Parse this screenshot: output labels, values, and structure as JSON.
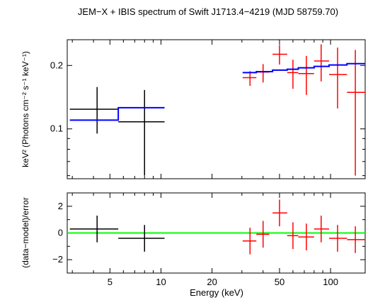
{
  "chart_data": {
    "type": "scatter",
    "title": "JEM−X + IBIS spectrum of Swift J1713.4−4219 (MJD 58759.70)",
    "xlabel": "Energy (keV)",
    "x_scale": "log",
    "xlim": [
      2.8,
      160
    ],
    "x_ticks": [
      {
        "v": 5,
        "label": "5"
      },
      {
        "v": 10,
        "label": "10"
      },
      {
        "v": 20,
        "label": "20"
      },
      {
        "v": 50,
        "label": "50"
      },
      {
        "v": 100,
        "label": "100"
      }
    ],
    "colors": {
      "jemx": "#000000",
      "ibis": "#ff0000",
      "model": "#0000ff",
      "zero_line": "#00ff00"
    },
    "panels": [
      {
        "name": "spectrum",
        "ylabel": "keV² (Photons cm⁻² s⁻¹ keV⁻¹)",
        "y_scale": "log",
        "ylim": [
          0.058,
          0.265
        ],
        "y_ticks": [
          {
            "v": 0.1,
            "label": "0.1"
          },
          {
            "v": 0.2,
            "label": "0.2"
          }
        ],
        "series": [
          {
            "key": "jemx",
            "points": [
              {
                "x": 4.2,
                "xlo": 2.9,
                "xhi": 5.6,
                "y": 0.124,
                "ylo": 0.095,
                "yhi": 0.158
              },
              {
                "x": 8.0,
                "xlo": 5.6,
                "xhi": 10.5,
                "y": 0.108,
                "ylo": 0.06,
                "yhi": 0.153
              }
            ]
          },
          {
            "key": "ibis",
            "points": [
              {
                "x": 33.5,
                "xlo": 30.3,
                "xhi": 36.5,
                "y": 0.175,
                "ylo": 0.16,
                "yhi": 0.188
              },
              {
                "x": 40.0,
                "xlo": 36.5,
                "xhi": 43.5,
                "y": 0.186,
                "ylo": 0.166,
                "yhi": 0.203
              },
              {
                "x": 50.0,
                "xlo": 45.5,
                "xhi": 55.5,
                "y": 0.226,
                "ylo": 0.202,
                "yhi": 0.25
              },
              {
                "x": 60.0,
                "xlo": 55.5,
                "xhi": 64.5,
                "y": 0.185,
                "ylo": 0.155,
                "yhi": 0.213
              },
              {
                "x": 72.0,
                "xlo": 64.5,
                "xhi": 80.0,
                "y": 0.183,
                "ylo": 0.145,
                "yhi": 0.222
              },
              {
                "x": 88.0,
                "xlo": 80.0,
                "xhi": 98.0,
                "y": 0.21,
                "ylo": 0.168,
                "yhi": 0.252
              },
              {
                "x": 110.0,
                "xlo": 98.0,
                "xhi": 125.0,
                "y": 0.181,
                "ylo": 0.125,
                "yhi": 0.243
              },
              {
                "x": 140.0,
                "xlo": 125.0,
                "xhi": 160.0,
                "y": 0.149,
                "ylo": 0.06,
                "yhi": 0.237
              }
            ]
          },
          {
            "key": "model",
            "step": true,
            "segments": [
              {
                "xlo": 2.9,
                "xhi": 5.6,
                "y": 0.11
              },
              {
                "xlo": 5.6,
                "xhi": 10.5,
                "y": 0.126
              },
              {
                "xlo": 30.3,
                "xhi": 36.5,
                "y": 0.185
              },
              {
                "xlo": 36.5,
                "xhi": 45.5,
                "y": 0.187
              },
              {
                "xlo": 45.5,
                "xhi": 55.5,
                "y": 0.19
              },
              {
                "xlo": 55.5,
                "xhi": 64.5,
                "y": 0.192
              },
              {
                "xlo": 64.5,
                "xhi": 80.0,
                "y": 0.195
              },
              {
                "xlo": 80.0,
                "xhi": 98.0,
                "y": 0.198
              },
              {
                "xlo": 98.0,
                "xhi": 125.0,
                "y": 0.201
              },
              {
                "xlo": 125.0,
                "xhi": 160.0,
                "y": 0.204
              }
            ]
          }
        ]
      },
      {
        "name": "residuals",
        "ylabel": "(data−model)/error",
        "y_scale": "linear",
        "ylim": [
          -3,
          3
        ],
        "y_ticks": [
          {
            "v": -2,
            "label": "−2"
          },
          {
            "v": 0,
            "label": "0"
          },
          {
            "v": 2,
            "label": "2"
          }
        ],
        "zero_line": 0,
        "series": [
          {
            "key": "jemx",
            "points": [
              {
                "x": 4.2,
                "xlo": 2.9,
                "xhi": 5.6,
                "y": 0.3,
                "ylo": -0.7,
                "yhi": 1.3
              },
              {
                "x": 8.0,
                "xlo": 5.6,
                "xhi": 10.5,
                "y": -0.4,
                "ylo": -1.4,
                "yhi": 0.6
              }
            ]
          },
          {
            "key": "ibis",
            "points": [
              {
                "x": 33.5,
                "xlo": 30.3,
                "xhi": 36.5,
                "y": -0.6,
                "ylo": -1.6,
                "yhi": 0.4
              },
              {
                "x": 40.0,
                "xlo": 36.5,
                "xhi": 43.5,
                "y": -0.1,
                "ylo": -1.1,
                "yhi": 0.9
              },
              {
                "x": 50.0,
                "xlo": 45.5,
                "xhi": 55.5,
                "y": 1.5,
                "ylo": 0.5,
                "yhi": 2.5
              },
              {
                "x": 60.0,
                "xlo": 55.5,
                "xhi": 64.5,
                "y": -0.2,
                "ylo": -1.2,
                "yhi": 0.8
              },
              {
                "x": 72.0,
                "xlo": 64.5,
                "xhi": 80.0,
                "y": -0.3,
                "ylo": -1.3,
                "yhi": 0.7
              },
              {
                "x": 88.0,
                "xlo": 80.0,
                "xhi": 98.0,
                "y": 0.3,
                "ylo": -0.7,
                "yhi": 1.3
              },
              {
                "x": 110.0,
                "xlo": 98.0,
                "xhi": 125.0,
                "y": -0.4,
                "ylo": -1.4,
                "yhi": 0.6
              },
              {
                "x": 140.0,
                "xlo": 125.0,
                "xhi": 160.0,
                "y": -0.5,
                "ylo": -1.5,
                "yhi": 0.5
              }
            ]
          }
        ]
      }
    ]
  }
}
